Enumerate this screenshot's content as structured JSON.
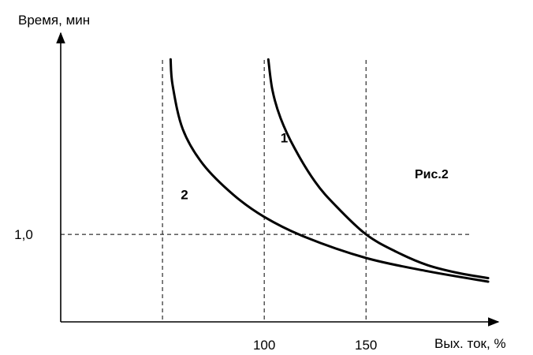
{
  "chart_data": {
    "type": "line",
    "title": "",
    "figure_label": "Рис.2",
    "ylabel": "Время, мин",
    "xlabel": "Вых. ток, %",
    "x_ticks": [
      {
        "value": 100,
        "label": "100"
      },
      {
        "value": 150,
        "label": "150"
      }
    ],
    "y_ticks": [
      {
        "value": 1.0,
        "label": "1,0"
      }
    ],
    "xlim": [
      0,
      215
    ],
    "ylim": [
      0,
      3.3
    ],
    "grid": {
      "vertical_dashed_at_x": [
        50,
        100,
        150
      ],
      "horizontal_dashed_at_y": [
        1.0
      ]
    },
    "series": [
      {
        "name": "1",
        "label": "1",
        "color": "#000000",
        "label_at": {
          "x": 108,
          "y": 2.05
        },
        "points": [
          {
            "x": 102,
            "y": 3.0
          },
          {
            "x": 104,
            "y": 2.65
          },
          {
            "x": 108,
            "y": 2.33
          },
          {
            "x": 115,
            "y": 1.98
          },
          {
            "x": 125,
            "y": 1.6
          },
          {
            "x": 135,
            "y": 1.33
          },
          {
            "x": 150,
            "y": 1.0
          },
          {
            "x": 165,
            "y": 0.8
          },
          {
            "x": 180,
            "y": 0.65
          },
          {
            "x": 195,
            "y": 0.56
          },
          {
            "x": 210,
            "y": 0.5
          }
        ]
      },
      {
        "name": "2",
        "label": "2",
        "color": "#000000",
        "label_at": {
          "x": 59,
          "y": 1.4
        },
        "points": [
          {
            "x": 54,
            "y": 3.0
          },
          {
            "x": 55,
            "y": 2.7
          },
          {
            "x": 60,
            "y": 2.2
          },
          {
            "x": 70,
            "y": 1.8
          },
          {
            "x": 85,
            "y": 1.45
          },
          {
            "x": 100,
            "y": 1.2
          },
          {
            "x": 120,
            "y": 0.97
          },
          {
            "x": 150,
            "y": 0.73
          },
          {
            "x": 180,
            "y": 0.58
          },
          {
            "x": 210,
            "y": 0.46
          }
        ]
      }
    ]
  }
}
